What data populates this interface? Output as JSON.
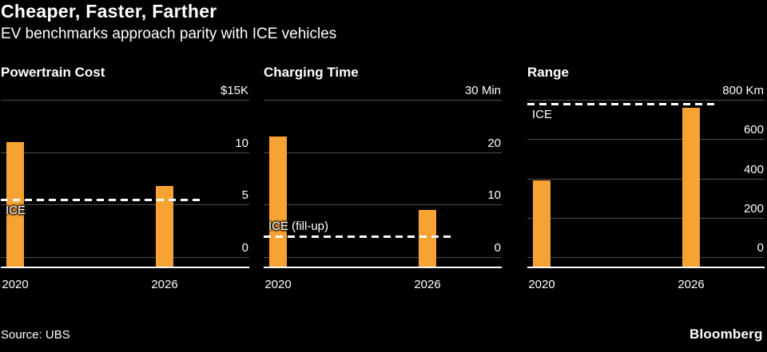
{
  "header": {
    "title": "Cheaper, Faster, Farther",
    "subtitle": "EV benchmarks approach parity with ICE vehicles"
  },
  "footer": {
    "source": "Source: UBS",
    "brand": "Bloomberg"
  },
  "colors": {
    "background": "#000000",
    "bar": "#F7A233",
    "grid": "#4F4F4F",
    "axis": "#FFFFFF",
    "text": "#FFFFFF",
    "benchmark_line": "#FFFFFF"
  },
  "chart_data": [
    {
      "type": "bar",
      "title": "Powertrain Cost",
      "categories": [
        "2020",
        "2026"
      ],
      "values": [
        11,
        6.8
      ],
      "unit": "$K",
      "ylim": [
        0,
        15
      ],
      "yticks": [
        0,
        5,
        10,
        15
      ],
      "ytick_labels": [
        "0",
        "5",
        "10",
        "$15K"
      ],
      "grid": true,
      "legend": false,
      "benchmark": {
        "label": "ICE",
        "value": 5.5,
        "label_position": "below"
      }
    },
    {
      "type": "bar",
      "title": "Charging Time",
      "categories": [
        "2020",
        "2026"
      ],
      "values": [
        23,
        9
      ],
      "unit": "Min",
      "ylim": [
        0,
        30
      ],
      "yticks": [
        0,
        10,
        20,
        30
      ],
      "ytick_labels": [
        "0",
        "10",
        "20",
        "30 Min"
      ],
      "grid": true,
      "legend": false,
      "benchmark": {
        "label": "ICE (fill-up)",
        "value": 4,
        "label_position": "above"
      }
    },
    {
      "type": "bar",
      "title": "Range",
      "categories": [
        "2020",
        "2026"
      ],
      "values": [
        390,
        760
      ],
      "unit": "Km",
      "ylim": [
        0,
        800
      ],
      "yticks": [
        0,
        200,
        400,
        600,
        800
      ],
      "ytick_labels": [
        "0",
        "200",
        "400",
        "600",
        "800 Km"
      ],
      "grid": true,
      "legend": false,
      "benchmark": {
        "label": "ICE",
        "value": 780,
        "label_position": "below"
      }
    }
  ]
}
